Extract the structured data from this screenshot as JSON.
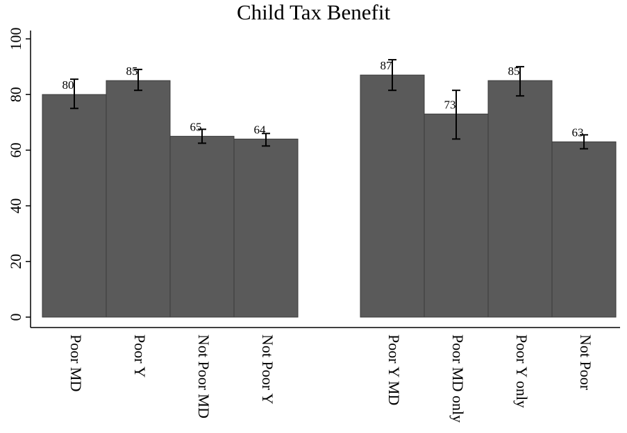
{
  "chart_data": {
    "type": "bar",
    "title": "Child Tax Benefit",
    "xlabel": "",
    "ylabel": "",
    "ylim": [
      0,
      100
    ],
    "yticks": [
      "0",
      "20",
      "40",
      "60",
      "80",
      "100"
    ],
    "grid": false,
    "legend": "none",
    "bar_color": "#5a5a5a",
    "groups": [
      {
        "categories": [
          "Poor MD",
          "Poor Y",
          "Not Poor MD",
          "Not Poor Y"
        ],
        "values": [
          80,
          85,
          65,
          64
        ],
        "labels": [
          "80",
          "85",
          "65",
          "64"
        ],
        "ci_low": [
          75,
          81.5,
          62.5,
          61.5
        ],
        "ci_high": [
          85.5,
          89,
          67.5,
          66
        ]
      },
      {
        "categories": [
          "Poor Y MD",
          "Poor MD only",
          "Poor Y only",
          "Not Poor"
        ],
        "values": [
          87,
          73,
          85,
          63
        ],
        "labels": [
          "87",
          "73",
          "85",
          "63"
        ],
        "ci_low": [
          81.5,
          64,
          79.5,
          60.5
        ],
        "ci_high": [
          92.5,
          81.5,
          90,
          65.5
        ]
      }
    ]
  }
}
